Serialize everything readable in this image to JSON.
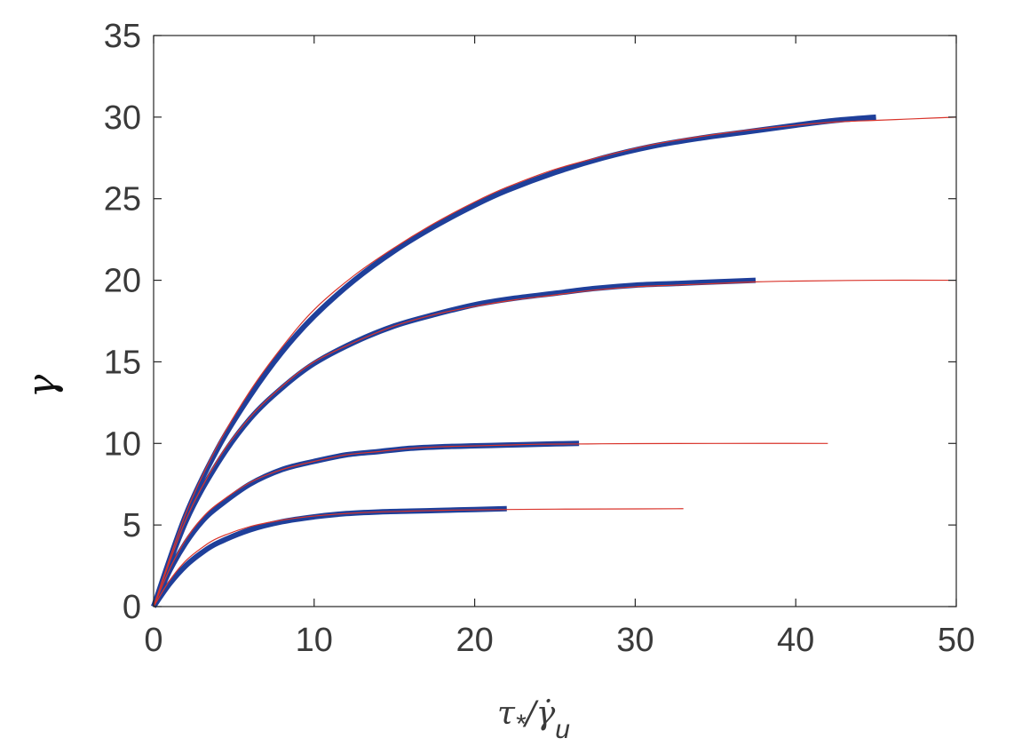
{
  "chart_data": {
    "type": "line",
    "xlim": [
      0,
      50
    ],
    "ylim": [
      0,
      35
    ],
    "x_ticks": [
      "0",
      "10",
      "20",
      "30",
      "40",
      "50"
    ],
    "y_ticks": [
      "0",
      "5",
      "10",
      "15",
      "20",
      "25",
      "30",
      "35"
    ],
    "xlabel": {
      "tau": "τ",
      "tau_sub": "*",
      "slash": "/",
      "gammadot": "γ̇",
      "gammadot_sub": "u"
    },
    "ylabel": "γ",
    "grid": false,
    "colors": {
      "thick_series": "#1f3f9a",
      "thin_series": "#d9342b",
      "axis": "#262626",
      "tick_text": "#3a3a3a"
    },
    "series": [
      {
        "style": "thick",
        "x": [
          0,
          2,
          4,
          6,
          8,
          10,
          12.5,
          15,
          17.5,
          20,
          22,
          25,
          28,
          31,
          34,
          37,
          40,
          42.5,
          45
        ],
        "y": [
          0,
          5.6,
          9.7,
          12.9,
          15.6,
          17.8,
          20.0,
          21.8,
          23.3,
          24.6,
          25.5,
          26.6,
          27.5,
          28.2,
          28.7,
          29.1,
          29.5,
          29.8,
          30.0
        ]
      },
      {
        "style": "thin",
        "x": [
          0,
          2,
          4,
          6,
          8,
          10,
          12.5,
          15,
          17.5,
          20,
          22,
          25,
          28,
          31,
          34,
          37,
          40,
          42.5,
          45,
          47.5,
          50
        ],
        "y": [
          0,
          5.7,
          9.9,
          13.2,
          15.9,
          18.2,
          20.3,
          22.0,
          23.5,
          24.8,
          25.7,
          26.8,
          27.6,
          28.3,
          28.8,
          29.2,
          29.5,
          29.7,
          29.8,
          29.9,
          30.0
        ]
      },
      {
        "style": "thick",
        "x": [
          0,
          2,
          4,
          6,
          8,
          10,
          12.5,
          15,
          17.5,
          20,
          22.5,
          25,
          27.5,
          30,
          32.5,
          35,
          37.5
        ],
        "y": [
          0,
          5.2,
          8.8,
          11.5,
          13.4,
          14.9,
          16.2,
          17.2,
          17.9,
          18.5,
          18.9,
          19.2,
          19.5,
          19.7,
          19.8,
          19.9,
          20.0
        ]
      },
      {
        "style": "thin",
        "x": [
          0,
          2,
          4,
          6,
          8,
          10,
          12.5,
          15,
          17.5,
          20,
          22.5,
          25,
          27.5,
          30,
          32.5,
          35,
          37.5,
          40,
          45,
          50
        ],
        "y": [
          0,
          5.3,
          9.0,
          11.6,
          13.5,
          15.0,
          16.2,
          17.2,
          17.9,
          18.4,
          18.8,
          19.1,
          19.4,
          19.6,
          19.7,
          19.8,
          19.9,
          19.95,
          20.0,
          20.0
        ]
      },
      {
        "style": "thick",
        "x": [
          0,
          1,
          2,
          3,
          4,
          6,
          8,
          10,
          12,
          14,
          16,
          18,
          20,
          22,
          24,
          26.5
        ],
        "y": [
          0,
          2.2,
          3.9,
          5.2,
          6.1,
          7.5,
          8.4,
          8.9,
          9.3,
          9.5,
          9.7,
          9.8,
          9.85,
          9.9,
          9.95,
          10.0
        ]
      },
      {
        "style": "thin",
        "x": [
          0,
          1,
          2,
          3,
          4,
          6,
          8,
          10,
          12,
          14,
          16,
          18,
          20,
          22,
          24,
          27,
          30,
          35,
          42
        ],
        "y": [
          0,
          2.3,
          4.1,
          5.4,
          6.3,
          7.6,
          8.4,
          8.9,
          9.3,
          9.5,
          9.7,
          9.8,
          9.85,
          9.9,
          9.95,
          9.97,
          9.99,
          10.0,
          10.0
        ]
      },
      {
        "style": "thick",
        "x": [
          0,
          1,
          2,
          3,
          4,
          6,
          8,
          10,
          12,
          14,
          16,
          18,
          20,
          22
        ],
        "y": [
          0,
          1.4,
          2.5,
          3.3,
          3.9,
          4.7,
          5.2,
          5.5,
          5.7,
          5.8,
          5.85,
          5.9,
          5.95,
          6.0
        ]
      },
      {
        "style": "thin",
        "x": [
          0,
          1,
          2,
          3,
          4,
          6,
          8,
          10,
          12,
          14,
          16,
          18,
          20,
          22,
          25,
          28,
          33
        ],
        "y": [
          0,
          1.6,
          2.8,
          3.6,
          4.2,
          4.9,
          5.3,
          5.55,
          5.7,
          5.8,
          5.85,
          5.9,
          5.93,
          5.95,
          5.97,
          5.98,
          6.0
        ]
      }
    ]
  }
}
